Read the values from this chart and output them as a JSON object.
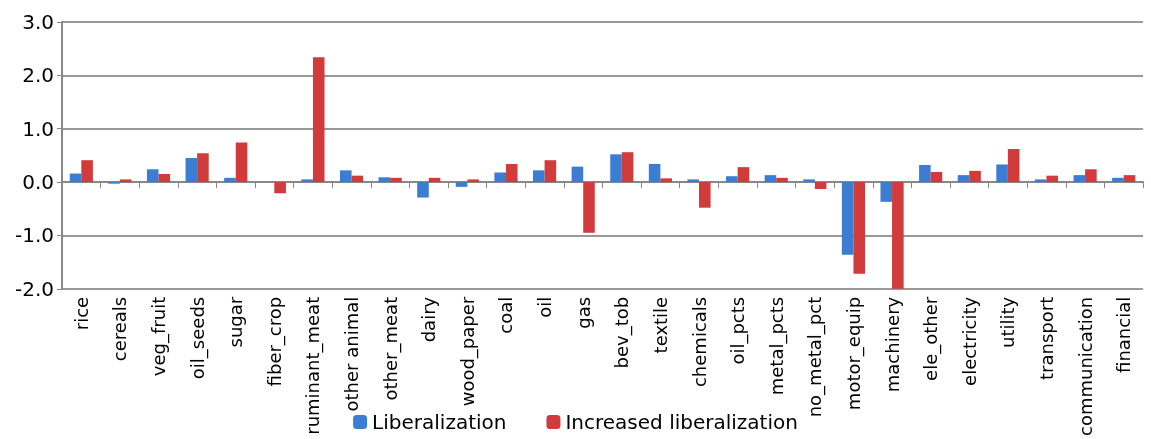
{
  "chart_data": {
    "type": "bar",
    "categories": [
      "rice",
      "cereals",
      "veg_fruit",
      "oil_seeds",
      "sugar",
      "fiber_crop",
      "ruminant_meat",
      "other animal",
      "other_meat",
      "dairy",
      "wood_paper",
      "coal",
      "oil",
      "gas",
      "bev_tob",
      "textile",
      "chemicals",
      "oil_pcts",
      "metal_pcts",
      "no_metal_pct",
      "motor_equip",
      "machinery",
      "ele_other",
      "electricity",
      "utility",
      "transport",
      "communication",
      "financial"
    ],
    "series": [
      {
        "name": "Liberalization",
        "color": "#3b7dd0",
        "values": [
          0.16,
          -0.03,
          0.24,
          0.45,
          0.08,
          0,
          0.05,
          0.22,
          0.09,
          -0.29,
          -0.09,
          0.18,
          0.22,
          0.29,
          0.52,
          0.34,
          0.05,
          0.11,
          0.13,
          0.05,
          -1.36,
          -0.37,
          0.32,
          0.13,
          0.33,
          0.05,
          0.13,
          0.08
        ]
      },
      {
        "name": "Increased liberalization",
        "color": "#d13b3b",
        "values": [
          0.41,
          0.05,
          0.15,
          0.54,
          0.74,
          -0.21,
          2.34,
          0.12,
          0.08,
          0.08,
          0.05,
          0.34,
          0.41,
          -0.95,
          0.56,
          0.07,
          -0.48,
          0.28,
          0.08,
          -0.13,
          -1.72,
          -2.0,
          0.19,
          0.21,
          0.62,
          0.12,
          0.24,
          0.13
        ]
      }
    ],
    "ylim": [
      -2,
      3
    ],
    "yticks": [
      {
        "value": -2,
        "label": "-2.0"
      },
      {
        "value": -1,
        "label": "-1.0"
      },
      {
        "value": 0,
        "label": "0.0"
      },
      {
        "value": 1,
        "label": "1.0"
      },
      {
        "value": 2,
        "label": "2.0"
      },
      {
        "value": 3,
        "label": "3.0"
      }
    ],
    "grid": "y",
    "legend": "bottom"
  }
}
